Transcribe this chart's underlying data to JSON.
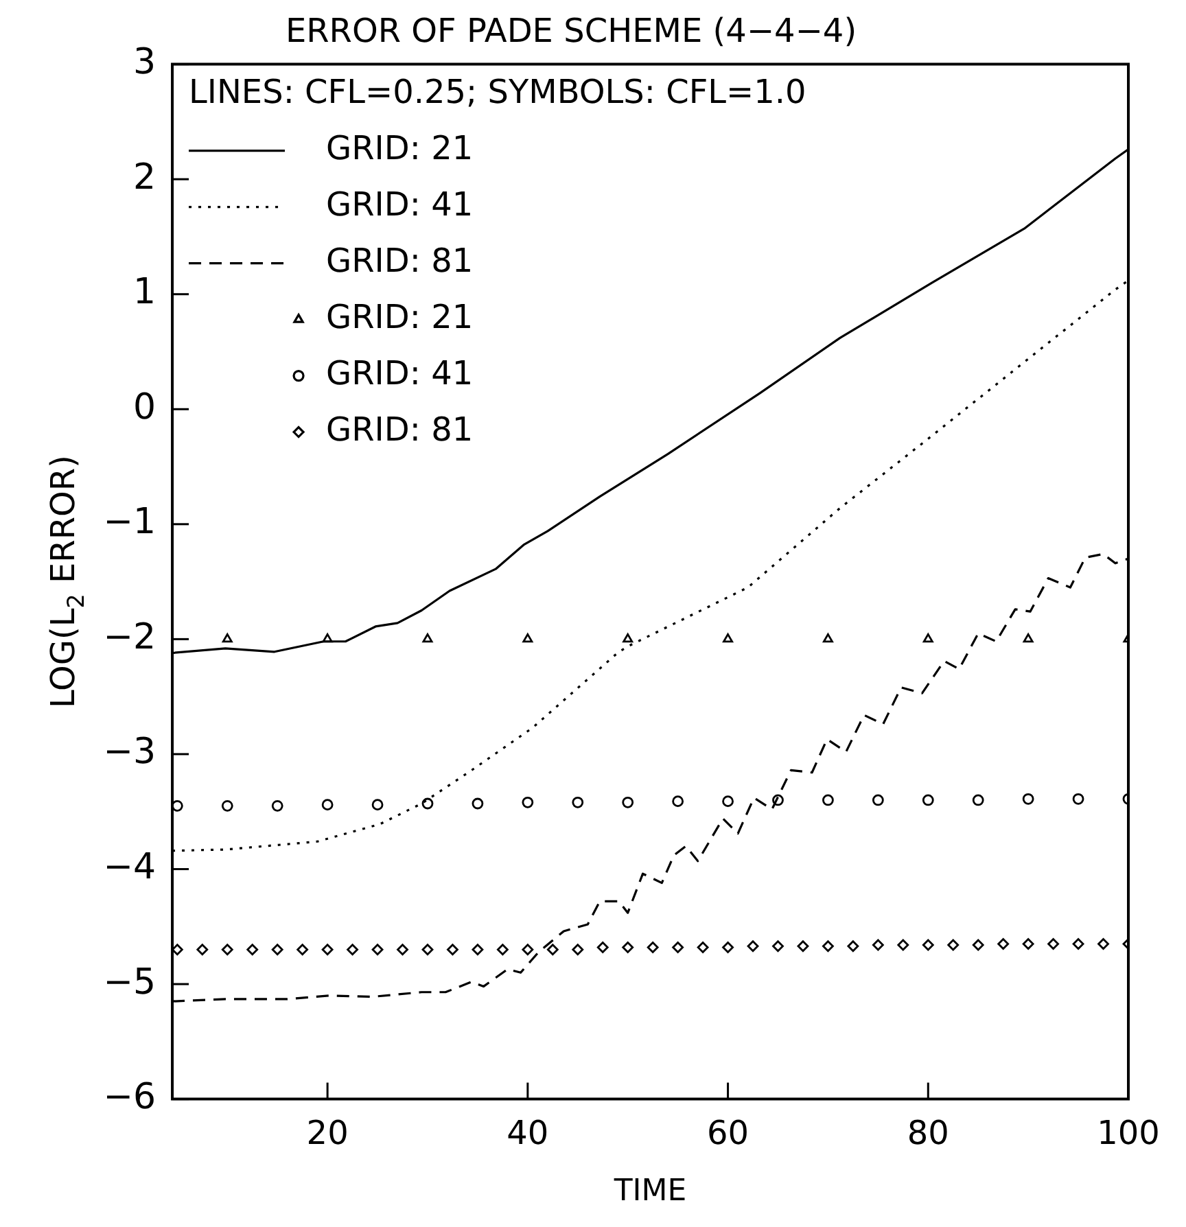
{
  "chart_data": {
    "type": "line",
    "title": "ERROR OF PADE SCHEME (4−4−4)",
    "xlabel": "TIME",
    "ylabel": "LOG(L$_{2}$ ERROR)",
    "legend_title": "LINES: CFL=0.25; SYMBOLS: CFL=1.0",
    "legend": "top left",
    "grid": false,
    "xlim": [
      4.5,
      100
    ],
    "xticks": [
      20,
      40,
      60,
      80,
      100
    ],
    "ylim": [
      -6,
      3
    ],
    "yticks": [
      -6,
      -5,
      -4,
      -3,
      -2,
      -1,
      0,
      1,
      2,
      3
    ],
    "series": [
      {
        "name": "GRID: 21",
        "line_style": "solid",
        "marker": "none",
        "color": "#000000",
        "x": [
          4.5,
          9.8,
          14.7,
          19.6,
          21.8,
          24.8,
          27,
          29.4,
          32.2,
          36.8,
          39.6,
          42,
          47.2,
          54,
          63.2,
          71.2,
          80.4,
          89.6,
          98.7,
          100
        ],
        "values": [
          -2.12,
          -2.08,
          -2.11,
          -2.02,
          -2.02,
          -1.89,
          -1.86,
          -1.75,
          -1.58,
          -1.39,
          -1.18,
          -1.06,
          -0.76,
          -0.39,
          0.14,
          0.62,
          1.1,
          1.57,
          2.18,
          2.26
        ]
      },
      {
        "name": "GRID: 41",
        "line_style": "dotted",
        "marker": "none",
        "color": "#000000",
        "x": [
          4.5,
          9.8,
          19,
          25.2,
          29.4,
          34.4,
          40.5,
          49.1,
          50.3,
          62,
          71.2,
          80.4,
          89.6,
          98.7,
          100
        ],
        "values": [
          -3.84,
          -3.83,
          -3.76,
          -3.61,
          -3.43,
          -3.14,
          -2.77,
          -2.11,
          -2.05,
          -1.55,
          -0.86,
          -0.23,
          0.41,
          1.04,
          1.12
        ]
      },
      {
        "name": "GRID: 81",
        "line_style": "dashed",
        "marker": "none",
        "color": "#000000",
        "x": [
          4.5,
          9.8,
          16,
          20.2,
          24.5,
          29.4,
          31.8,
          34.4,
          35.6,
          38,
          39.3,
          41.1,
          43.6,
          46,
          47.2,
          49.1,
          50,
          51.5,
          53.4,
          54.6,
          55.8,
          57,
          59.5,
          61,
          62.6,
          64.4,
          66.3,
          68.4,
          69.9,
          71.8,
          73.6,
          75.5,
          77.3,
          79.4,
          81.6,
          83.1,
          85,
          86.8,
          88.7,
          90.2,
          92,
          94.2,
          95.7,
          97.5,
          98.7,
          100
        ],
        "values": [
          -5.15,
          -5.13,
          -5.13,
          -5.1,
          -5.11,
          -5.07,
          -5.07,
          -4.98,
          -5.02,
          -4.87,
          -4.9,
          -4.72,
          -4.54,
          -4.48,
          -4.28,
          -4.28,
          -4.38,
          -4.04,
          -4.12,
          -3.88,
          -3.8,
          -3.93,
          -3.56,
          -3.69,
          -3.38,
          -3.48,
          -3.14,
          -3.16,
          -2.87,
          -2.98,
          -2.66,
          -2.74,
          -2.42,
          -2.47,
          -2.19,
          -2.26,
          -1.95,
          -2.02,
          -1.74,
          -1.76,
          -1.47,
          -1.55,
          -1.29,
          -1.26,
          -1.34,
          -1.3
        ]
      },
      {
        "name": "GRID: 21",
        "type": "scatter",
        "marker": "triangle",
        "color": "#000000",
        "x": [
          10,
          20,
          30,
          40,
          50,
          60,
          70,
          80,
          90,
          100
        ],
        "values": [
          -2,
          -2,
          -2,
          -2,
          -2,
          -2,
          -2,
          -2,
          -2,
          -2
        ]
      },
      {
        "name": "GRID: 41",
        "type": "scatter",
        "marker": "circle",
        "color": "#000000",
        "x": [
          5,
          10,
          15,
          20,
          25,
          30,
          35,
          40,
          45,
          50,
          55,
          60,
          65,
          70,
          75,
          80,
          85,
          90,
          95,
          100
        ],
        "values": [
          -3.45,
          -3.45,
          -3.45,
          -3.44,
          -3.44,
          -3.43,
          -3.43,
          -3.42,
          -3.42,
          -3.42,
          -3.41,
          -3.41,
          -3.4,
          -3.4,
          -3.4,
          -3.4,
          -3.4,
          -3.39,
          -3.39,
          -3.39
        ]
      },
      {
        "name": "GRID: 81",
        "type": "scatter",
        "marker": "diamond",
        "color": "#000000",
        "x": [
          5,
          7.5,
          10,
          12.5,
          15,
          17.5,
          20,
          22.5,
          25,
          27.5,
          30,
          32.5,
          35,
          37.5,
          40,
          42.5,
          45,
          47.5,
          50,
          52.5,
          55,
          57.5,
          60,
          62.5,
          65,
          67.5,
          70,
          72.5,
          75,
          77.5,
          80,
          82.5,
          85,
          87.5,
          90,
          92.5,
          95,
          97.5,
          100
        ],
        "values": [
          -4.7,
          -4.7,
          -4.7,
          -4.7,
          -4.7,
          -4.7,
          -4.7,
          -4.7,
          -4.7,
          -4.7,
          -4.7,
          -4.7,
          -4.7,
          -4.7,
          -4.7,
          -4.7,
          -4.7,
          -4.68,
          -4.68,
          -4.68,
          -4.68,
          -4.68,
          -4.68,
          -4.67,
          -4.67,
          -4.67,
          -4.67,
          -4.67,
          -4.66,
          -4.66,
          -4.66,
          -4.66,
          -4.66,
          -4.65,
          -4.65,
          -4.65,
          -4.65,
          -4.65,
          -4.65
        ]
      }
    ]
  }
}
